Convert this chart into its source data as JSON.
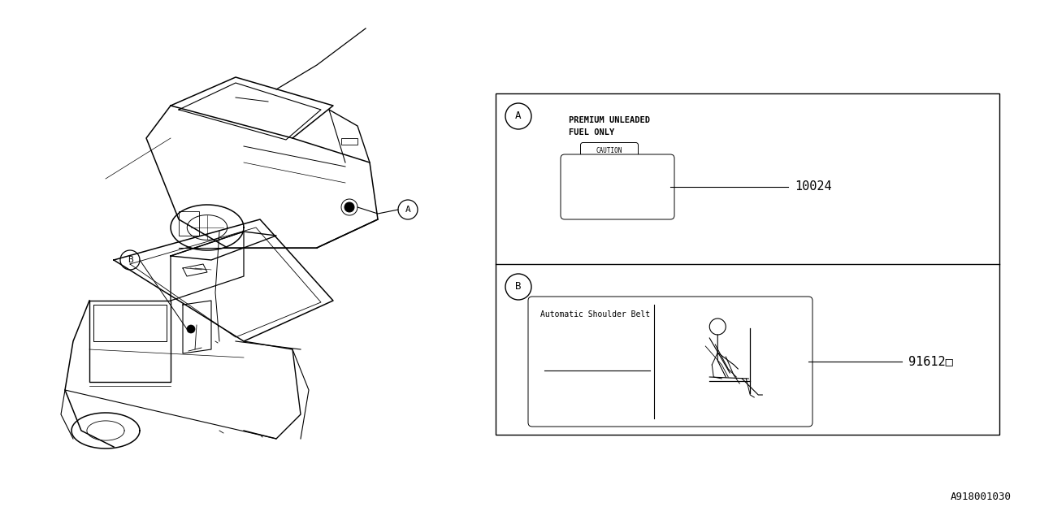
{
  "bg_color": "#ffffff",
  "line_color": "#000000",
  "fig_width": 12.8,
  "fig_height": 6.4,
  "part_A_label": "10024",
  "part_B_label": "91612□",
  "label_A_title1": "PREMIUM UNLEADED",
  "label_A_title2": "FUEL ONLY",
  "label_A_caution": "CAUTION",
  "label_B_title": "Automatic Shoulder Belt",
  "circle_A": "A",
  "circle_B": "B",
  "footer_text": "A918001030"
}
